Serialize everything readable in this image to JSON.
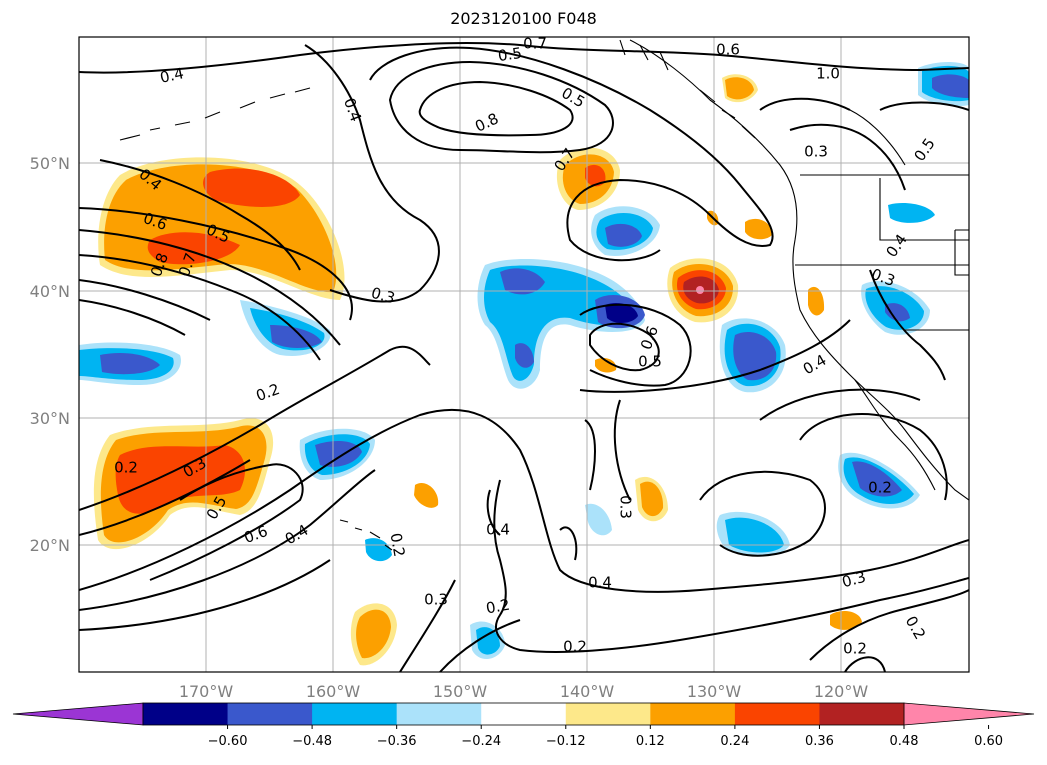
{
  "title": "2023120100 F048",
  "axes": {
    "lon_labels": [
      "170°W",
      "160°W",
      "150°W",
      "140°W",
      "130°W",
      "120°W"
    ],
    "lat_labels": [
      "50°N",
      "40°N",
      "30°N",
      "20°N"
    ]
  },
  "colorbar": {
    "ticks": [
      "−0.60",
      "−0.48",
      "−0.36",
      "−0.24",
      "−0.12",
      "0.12",
      "0.24",
      "0.36",
      "0.48",
      "0.60"
    ],
    "colors": [
      "#9b35d4",
      "#000088",
      "#3a58cc",
      "#00b4f2",
      "#abe2fa",
      "#ffffff",
      "#fde88a",
      "#fca000",
      "#fa4400",
      "#b22222",
      "#ff85aa"
    ]
  },
  "contour_labels": [
    "0.4",
    "0.5",
    "0.7",
    "0.6",
    "0.4",
    "0.5",
    "0.8",
    "1.0",
    "0.3",
    "0.5",
    "0.7",
    "0.4",
    "0.6",
    "0.5",
    "0.8",
    "0.7",
    "0.3",
    "0.4",
    "0.3",
    "0.6",
    "0.5",
    "0.4",
    "0.2",
    "0.2",
    "0.3",
    "0.5",
    "0.6",
    "0.4",
    "0.3",
    "0.2",
    "0.4",
    "0.2",
    "0.2",
    "0.3",
    "0.4",
    "0.3",
    "0.2",
    "0.2",
    "0.2"
  ]
}
